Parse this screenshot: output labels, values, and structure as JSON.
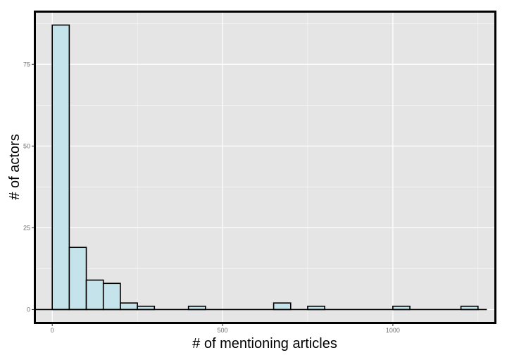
{
  "chart_data": {
    "type": "bar",
    "title": "",
    "xlabel": "# of mentioning articles",
    "ylabel": "# of actors",
    "bin_width": 50,
    "xlim": [
      -50,
      1300
    ],
    "ylim": [
      -4,
      91
    ],
    "x_ticks": [
      {
        "value": 0,
        "label": "0"
      },
      {
        "value": 500,
        "label": "500"
      },
      {
        "value": 1000,
        "label": "1000"
      }
    ],
    "y_ticks": [
      {
        "value": 0,
        "label": "0"
      },
      {
        "value": 25,
        "label": "25"
      },
      {
        "value": 50,
        "label": "50"
      },
      {
        "value": 75,
        "label": "75"
      }
    ],
    "bins": [
      {
        "start": 0,
        "end": 50,
        "count": 87
      },
      {
        "start": 50,
        "end": 100,
        "count": 19
      },
      {
        "start": 100,
        "end": 150,
        "count": 9
      },
      {
        "start": 150,
        "end": 200,
        "count": 8
      },
      {
        "start": 200,
        "end": 250,
        "count": 2
      },
      {
        "start": 250,
        "end": 300,
        "count": 1
      },
      {
        "start": 300,
        "end": 350,
        "count": 0
      },
      {
        "start": 350,
        "end": 400,
        "count": 0
      },
      {
        "start": 400,
        "end": 450,
        "count": 1
      },
      {
        "start": 450,
        "end": 500,
        "count": 0
      },
      {
        "start": 500,
        "end": 550,
        "count": 0
      },
      {
        "start": 550,
        "end": 600,
        "count": 0
      },
      {
        "start": 600,
        "end": 650,
        "count": 0
      },
      {
        "start": 650,
        "end": 700,
        "count": 2
      },
      {
        "start": 700,
        "end": 750,
        "count": 0
      },
      {
        "start": 750,
        "end": 800,
        "count": 1
      },
      {
        "start": 800,
        "end": 850,
        "count": 0
      },
      {
        "start": 850,
        "end": 900,
        "count": 0
      },
      {
        "start": 900,
        "end": 950,
        "count": 0
      },
      {
        "start": 950,
        "end": 1000,
        "count": 0
      },
      {
        "start": 1000,
        "end": 1050,
        "count": 1
      },
      {
        "start": 1050,
        "end": 1100,
        "count": 0
      },
      {
        "start": 1100,
        "end": 1150,
        "count": 0
      },
      {
        "start": 1150,
        "end": 1200,
        "count": 0
      },
      {
        "start": 1200,
        "end": 1250,
        "count": 1
      }
    ],
    "grid": true,
    "colors": {
      "bar_fill": "#c5e3ea",
      "bar_stroke": "#000000",
      "panel_background": "#e5e5e5",
      "grid_line": "#ffffff",
      "frame": "#000000"
    }
  }
}
